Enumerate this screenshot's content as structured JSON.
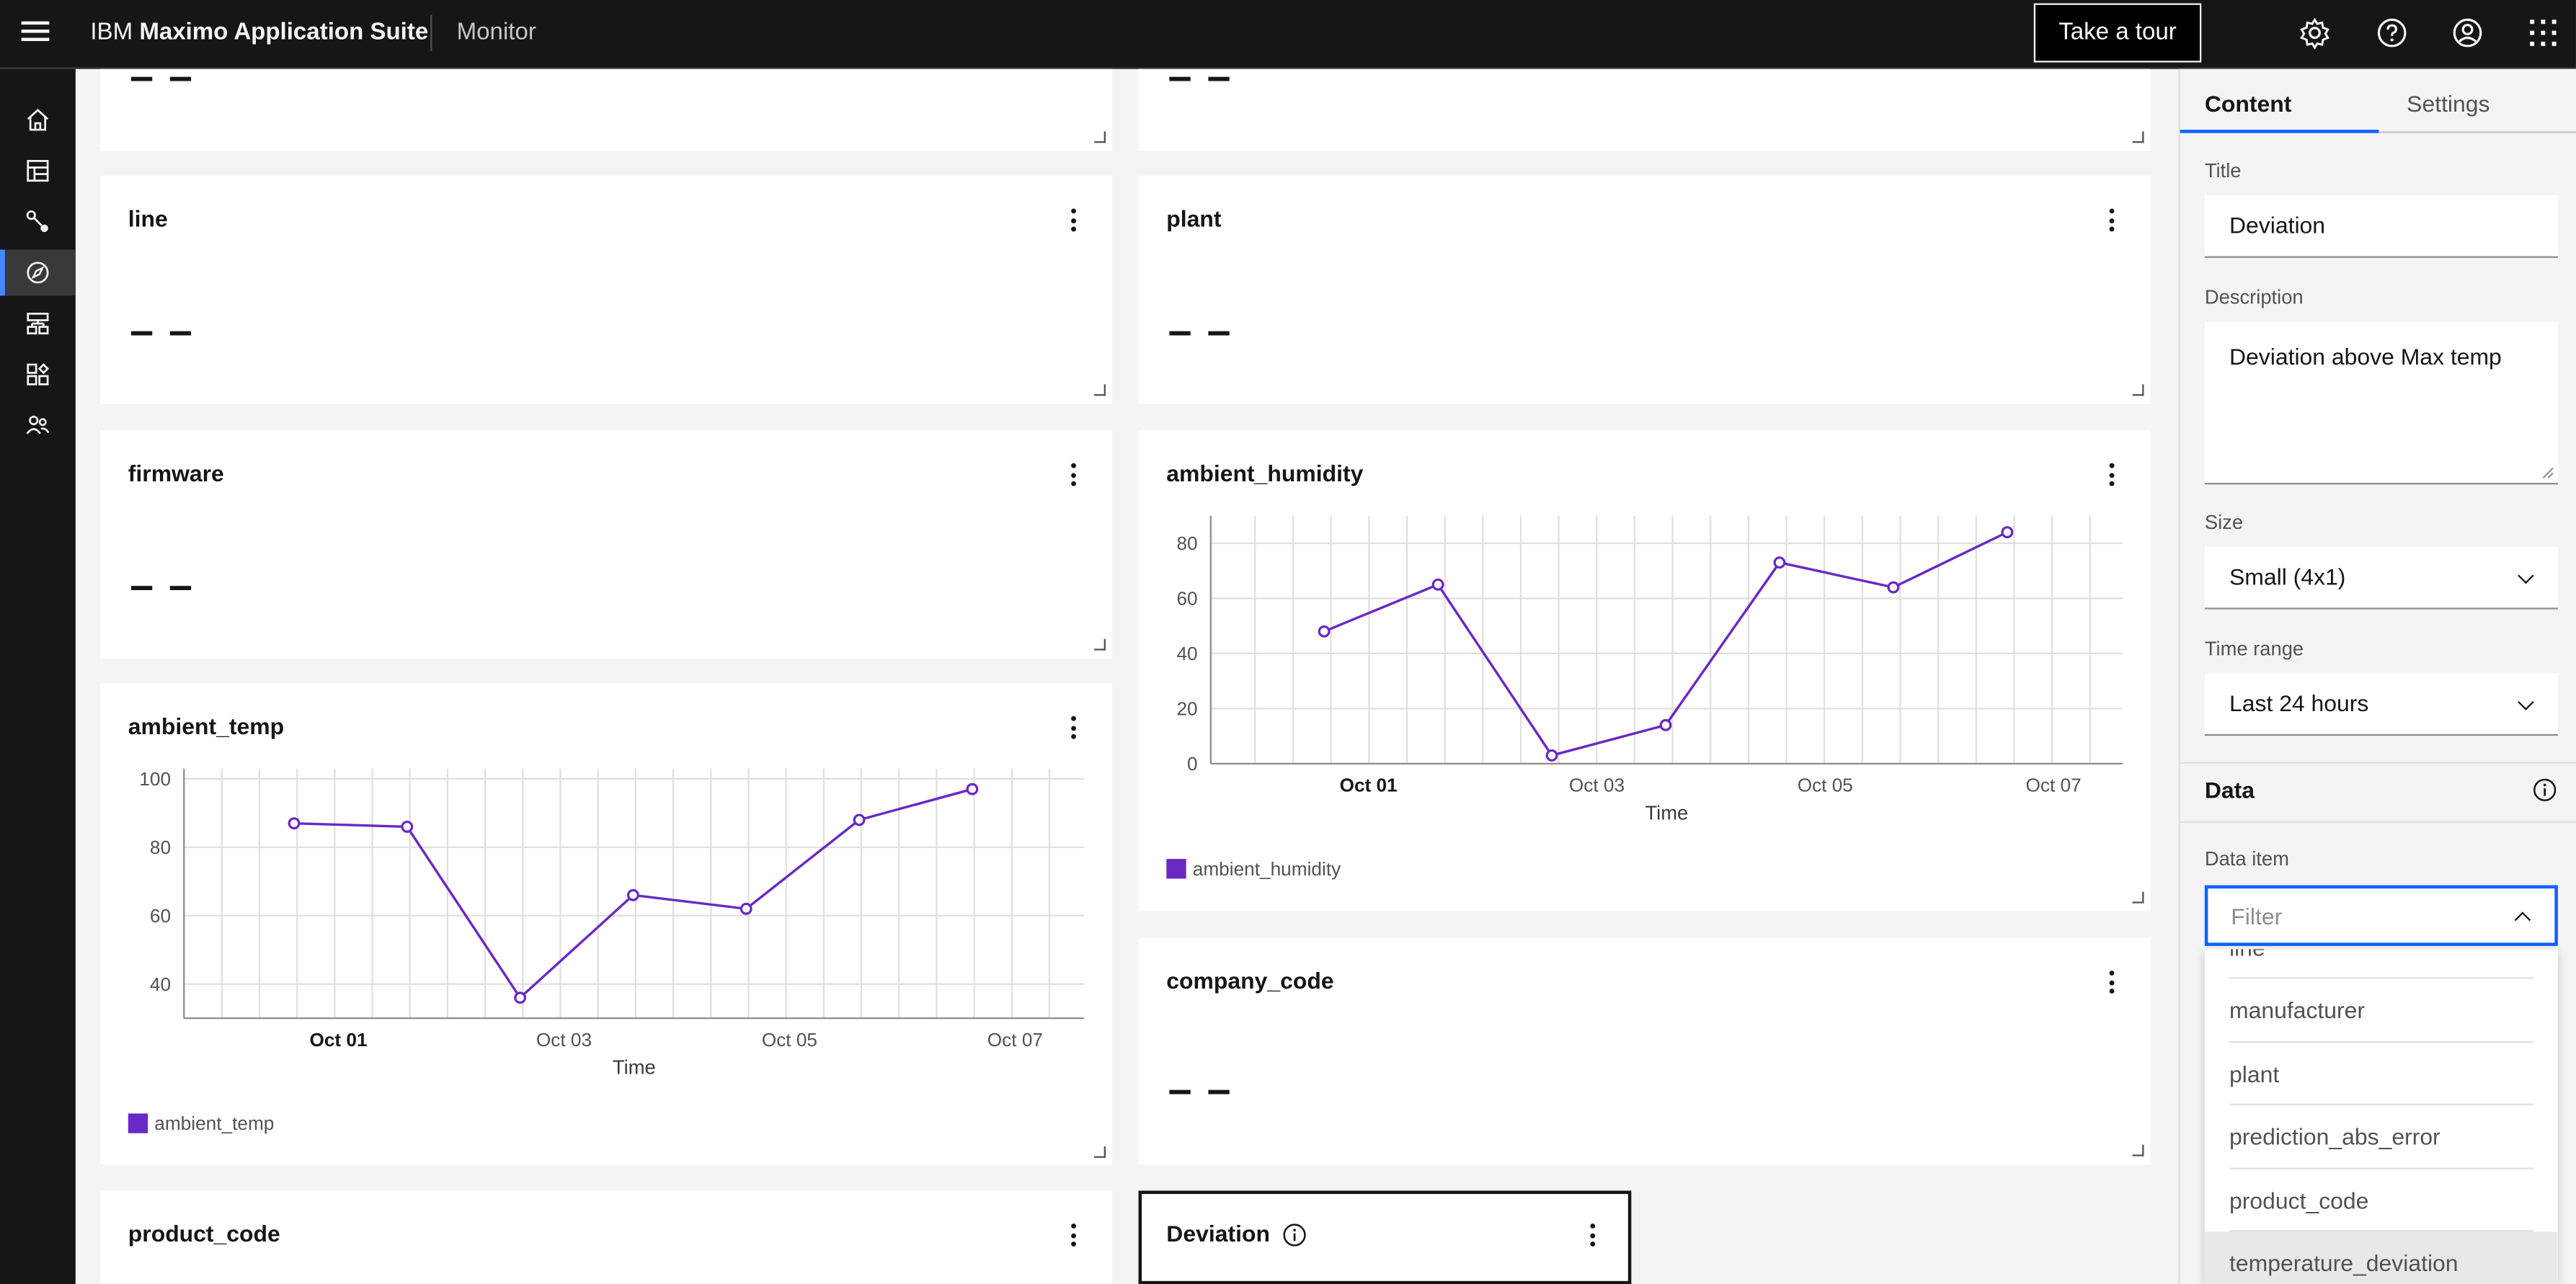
{
  "header": {
    "brand_prefix": "IBM",
    "brand_name": "Maximo Application Suite",
    "product": "Monitor",
    "tour_button": "Take a tour",
    "icons": [
      "settings-icon",
      "help-icon",
      "user-avatar-icon",
      "app-switcher-icon"
    ]
  },
  "rail": {
    "items": [
      "home-icon",
      "dashboard-icon",
      "connections-icon",
      "monitor-icon",
      "setup-icon",
      "devices-icon",
      "users-icon"
    ],
    "active_index": 3
  },
  "cards": {
    "top_left_value": "– –",
    "top_right_value": "– –",
    "line": {
      "title": "line",
      "value": "– –"
    },
    "plant": {
      "title": "plant",
      "value": "– –"
    },
    "firmware": {
      "title": "firmware",
      "value": "– –"
    },
    "company_code": {
      "title": "company_code",
      "value": "– –"
    },
    "product_code": {
      "title": "product_code"
    },
    "deviation": {
      "title": "Deviation"
    }
  },
  "ambient_humidity": {
    "title": "ambient_humidity",
    "legend": "ambient_humidity",
    "chart_data": {
      "type": "line",
      "title": "ambient_humidity",
      "xlabel": "Time",
      "ylabel": "",
      "ylim": [
        0,
        90
      ],
      "yticks": [
        0,
        20,
        40,
        60,
        80
      ],
      "xtick_labels": [
        "Oct 01",
        "Oct 03",
        "Oct 05",
        "Oct 07"
      ],
      "x": [
        "Sep 30",
        "Oct 01 12:00",
        "Oct 02 18:00",
        "Oct 03 18:00",
        "Oct 04 18:00",
        "Oct 05 18:00",
        "Oct 06 18:00"
      ],
      "series": [
        {
          "name": "ambient_humidity",
          "values": [
            48,
            65,
            3,
            14,
            73,
            64,
            84
          ]
        }
      ],
      "color": "#6929c4",
      "grid": true
    }
  },
  "ambient_temp": {
    "title": "ambient_temp",
    "legend": "ambient_temp",
    "chart_data": {
      "type": "line",
      "title": "ambient_temp",
      "xlabel": "Time",
      "ylabel": "",
      "ylim": [
        30,
        103
      ],
      "yticks": [
        40,
        60,
        80,
        100
      ],
      "xtick_labels": [
        "Oct 01",
        "Oct 03",
        "Oct 05",
        "Oct 07"
      ],
      "x": [
        "Sep 30",
        "Oct 01 12:00",
        "Oct 02 18:00",
        "Oct 03 18:00",
        "Oct 04 18:00",
        "Oct 05 18:00",
        "Oct 06 18:00"
      ],
      "series": [
        {
          "name": "ambient_temp",
          "values": [
            87,
            86,
            36,
            66,
            62,
            88,
            97
          ]
        }
      ],
      "color": "#6929c4",
      "grid": true
    }
  },
  "panel": {
    "tabs": [
      "Content",
      "Settings"
    ],
    "active_tab": "Content",
    "title_label": "Title",
    "title_value": "Deviation",
    "description_label": "Description",
    "description_value": "Deviation above Max temp",
    "size_label": "Size",
    "size_value": "Small (4x1)",
    "time_range_label": "Time range",
    "time_range_value": "Last 24 hours",
    "data_section": "Data",
    "data_item_label": "Data item",
    "filter_placeholder": "Filter",
    "options": [
      "line",
      "manufacturer",
      "plant",
      "prediction_abs_error",
      "product_code",
      "temperature_deviation"
    ],
    "highlighted_option": "temperature_deviation"
  }
}
